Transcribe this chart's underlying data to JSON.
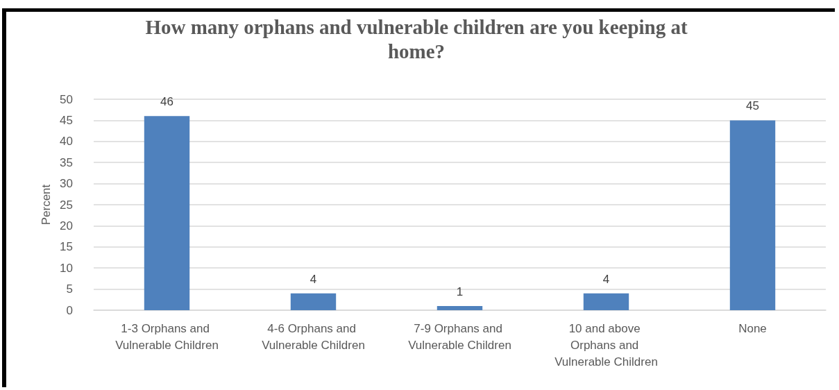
{
  "chart_data": {
    "type": "bar",
    "title": "How many orphans and vulnerable children are you keeping at home?",
    "ylabel": "Percent",
    "categories": [
      "1-3 Orphans and Vulnerable Children",
      "4-6 Orphans and Vulnerable Children",
      "7-9 Orphans and Vulnerable Children",
      "10 and above Orphans and Vulnerable Children",
      "None"
    ],
    "values": [
      46,
      4,
      1,
      4,
      45
    ],
    "color": "#4f81bd",
    "ylim": [
      0,
      50
    ],
    "yticks": [
      0,
      5,
      10,
      15,
      20,
      25,
      30,
      35,
      40,
      45,
      50
    ],
    "grid": "y",
    "data_labels": true
  }
}
